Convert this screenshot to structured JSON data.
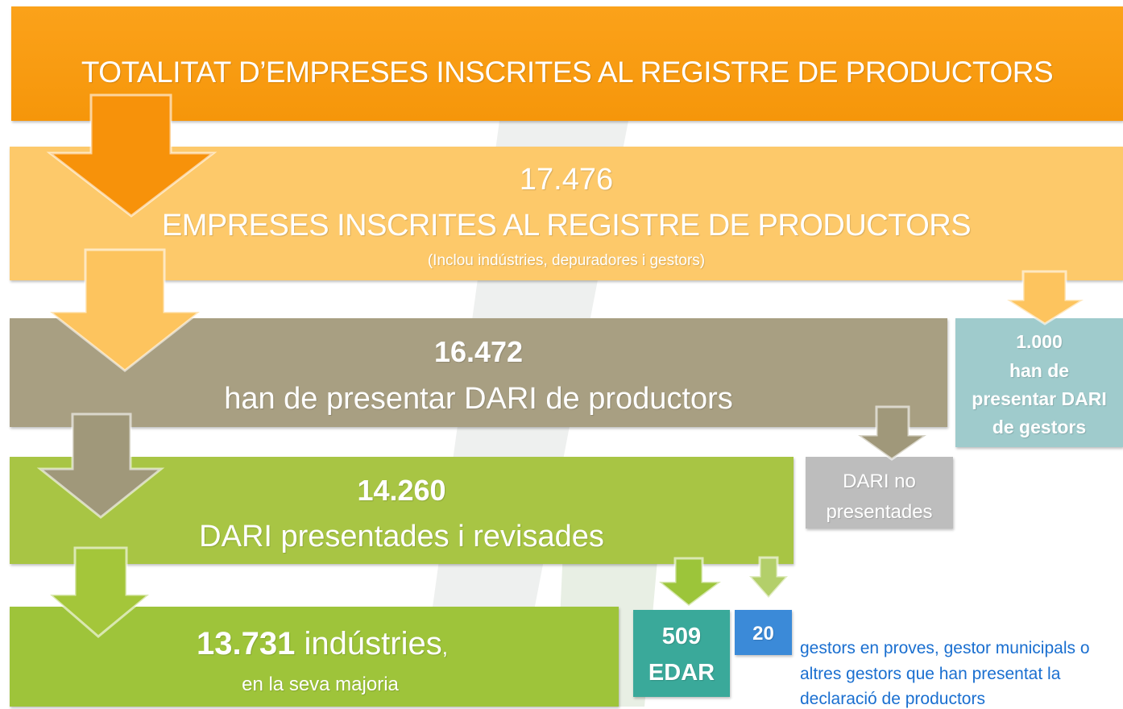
{
  "header": {
    "title": "TOTALITAT D’EMPRESES INSCRITES AL REGISTRE DE PRODUCTORS"
  },
  "registered": {
    "number": "17.476",
    "label": "EMPRESES INSCRITES AL REGISTRE DE PRODUCTORS",
    "note": "(Inclou indústries, depuradores i gestors)"
  },
  "producers": {
    "number": "16.472",
    "label": "han de presentar DARI de productors"
  },
  "managers": {
    "number": "1.000",
    "label_lines": [
      "han de",
      "presentar DARI",
      "de gestors"
    ]
  },
  "presented": {
    "number": "14.260",
    "label": "DARI presentades i revisades"
  },
  "not_presented": {
    "label_lines": [
      "DARI no",
      "presentades"
    ]
  },
  "industries": {
    "number": "13.731",
    "label": "indústries",
    "comma": ",",
    "note": "en la seva majoria"
  },
  "edar": {
    "number": "509",
    "label": "EDAR"
  },
  "other": {
    "number": "20",
    "note_lines": [
      "gestors en proves, gestor municipals o",
      "altres gestors que han presentat la",
      "declaració de productors"
    ]
  }
}
